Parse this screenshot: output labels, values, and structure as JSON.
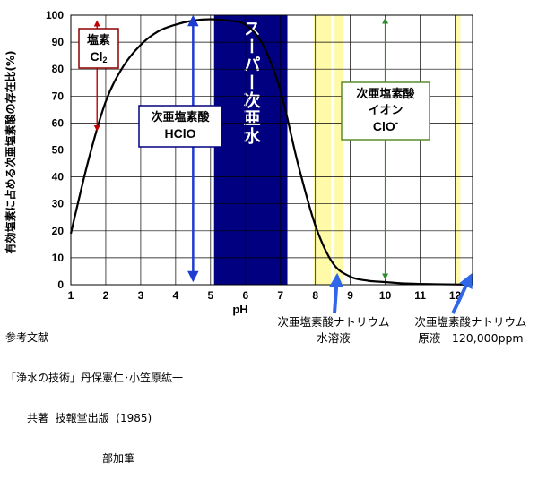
{
  "chart_data": {
    "type": "line",
    "xlabel": "pH",
    "ylabel": "有効塩素に占める次亜塩素酸の存在比(%)",
    "xlim": [
      1,
      12.5
    ],
    "ylim": [
      0,
      100
    ],
    "xticks": [
      1,
      2,
      3,
      4,
      5,
      6,
      7,
      8,
      9,
      10,
      11,
      12
    ],
    "yticks": [
      0,
      10,
      20,
      30,
      40,
      50,
      60,
      70,
      80,
      90,
      100
    ],
    "grid": true,
    "series": [
      {
        "x": [
          1,
          1.5,
          2,
          2.5,
          3,
          3.5,
          4,
          4.5,
          5,
          5.5,
          6,
          6.5,
          7,
          7.5,
          8,
          8.5,
          9,
          9.5,
          10,
          10.5,
          11,
          12,
          12.5
        ],
        "values": [
          19,
          46,
          68,
          81,
          89,
          94,
          96.5,
          98,
          98.5,
          98,
          96.5,
          89,
          72,
          45,
          22,
          8,
          3,
          1.5,
          1,
          0.5,
          0.3,
          0.1,
          0.1
        ]
      }
    ],
    "bands": [
      {
        "from": 5.1,
        "to": 7.2,
        "color": "#000080",
        "label": "スーパー次亜水"
      },
      {
        "from": 7.95,
        "to": 8.45,
        "color": "#fffaa8"
      },
      {
        "from": 8.55,
        "to": 8.8,
        "color": "#fffaa8"
      },
      {
        "from": 12.0,
        "to": 12.15,
        "color": "#fffaa8"
      }
    ],
    "regions": [
      {
        "name": "塩素",
        "formula": "Cl",
        "sub": "2",
        "border": "#8b0000",
        "arrow_color": "#c00000",
        "arrow_x": 1.75,
        "arrow_from": 58,
        "arrow_to": 97
      },
      {
        "name": "次亜塩素酸",
        "formula": "HClO",
        "border": "#000080",
        "arrow_color": "#1e3cd2",
        "arrow_x": 4.5,
        "arrow_from": 3,
        "arrow_to": 98
      },
      {
        "name": "次亜塩素酸",
        "name2": "イオン",
        "formula": "ClO",
        "sup": "-",
        "border": "#5a8c2c",
        "arrow_color": "#2e8b2e",
        "arrow_x": 10,
        "arrow_from": 3,
        "arrow_to": 98
      }
    ],
    "pointers": [
      {
        "label": "次亜塩素酸ナトリウム",
        "label2": "水溶液",
        "x": 8.4,
        "color": "#2f67e8"
      },
      {
        "label": "次亜塩素酸ナトリウム",
        "label2": "原液　120,000ppm",
        "x": 12.2,
        "color": "#2f67e8"
      }
    ]
  },
  "reference": {
    "l1": "参考文献",
    "l2": "「浄水の技術」丹保憲仁･小笠原紘一",
    "l3": "　　共著  技報堂出版  (1985)",
    "l4": "　　　　　　　　一部加筆"
  },
  "colors": {
    "curve": "#000000",
    "grid": "#000000",
    "band": "#000080",
    "yellow": "#fffaa8",
    "pointer": "#2f67e8"
  }
}
